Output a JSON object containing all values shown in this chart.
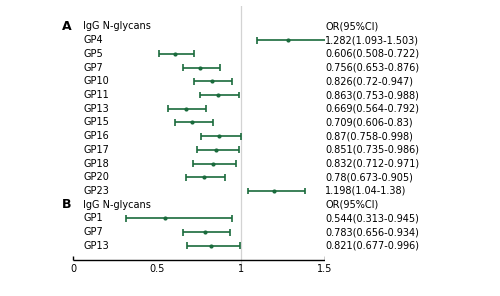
{
  "section_A": {
    "label": "A",
    "header": "IgG N-glycans",
    "header_or": "OR(95%CI)",
    "items": [
      {
        "name": "GP4",
        "or": 1.282,
        "lo": 1.093,
        "hi": 1.503,
        "text": "1.282(1.093-1.503)"
      },
      {
        "name": "GP5",
        "or": 0.606,
        "lo": 0.508,
        "hi": 0.722,
        "text": "0.606(0.508-0.722)"
      },
      {
        "name": "GP7",
        "or": 0.756,
        "lo": 0.653,
        "hi": 0.876,
        "text": "0.756(0.653-0.876)"
      },
      {
        "name": "GP10",
        "or": 0.826,
        "lo": 0.72,
        "hi": 0.947,
        "text": "0.826(0.72-0.947)"
      },
      {
        "name": "GP11",
        "or": 0.863,
        "lo": 0.753,
        "hi": 0.988,
        "text": "0.863(0.753-0.988)"
      },
      {
        "name": "GP13",
        "or": 0.669,
        "lo": 0.564,
        "hi": 0.792,
        "text": "0.669(0.564-0.792)"
      },
      {
        "name": "GP15",
        "or": 0.709,
        "lo": 0.606,
        "hi": 0.83,
        "text": "0.709(0.606-0.83)"
      },
      {
        "name": "GP16",
        "or": 0.87,
        "lo": 0.758,
        "hi": 0.998,
        "text": "0.87(0.758-0.998)"
      },
      {
        "name": "GP17",
        "or": 0.851,
        "lo": 0.735,
        "hi": 0.986,
        "text": "0.851(0.735-0.986)"
      },
      {
        "name": "GP18",
        "or": 0.832,
        "lo": 0.712,
        "hi": 0.971,
        "text": "0.832(0.712-0.971)"
      },
      {
        "name": "GP20",
        "or": 0.78,
        "lo": 0.673,
        "hi": 0.905,
        "text": "0.78(0.673-0.905)"
      },
      {
        "name": "GP23",
        "or": 1.198,
        "lo": 1.04,
        "hi": 1.38,
        "text": "1.198(1.04-1.38)"
      }
    ]
  },
  "section_B": {
    "label": "B",
    "header": "IgG N-glycans",
    "header_or": "OR(95%CI)",
    "items": [
      {
        "name": "GP1",
        "or": 0.544,
        "lo": 0.313,
        "hi": 0.945,
        "text": "0.544(0.313-0.945)"
      },
      {
        "name": "GP7",
        "or": 0.783,
        "lo": 0.656,
        "hi": 0.934,
        "text": "0.783(0.656-0.934)"
      },
      {
        "name": "GP13",
        "or": 0.821,
        "lo": 0.677,
        "hi": 0.996,
        "text": "0.821(0.677-0.996)"
      }
    ]
  },
  "color": "#1a6b3c",
  "xlim": [
    0,
    1.5
  ],
  "xticks": [
    0,
    0.5,
    1.0,
    1.5
  ],
  "xticklabels": [
    "0",
    "0.5",
    "1",
    "1.5"
  ],
  "vline_x": 1.0,
  "fontsize": 7.0
}
